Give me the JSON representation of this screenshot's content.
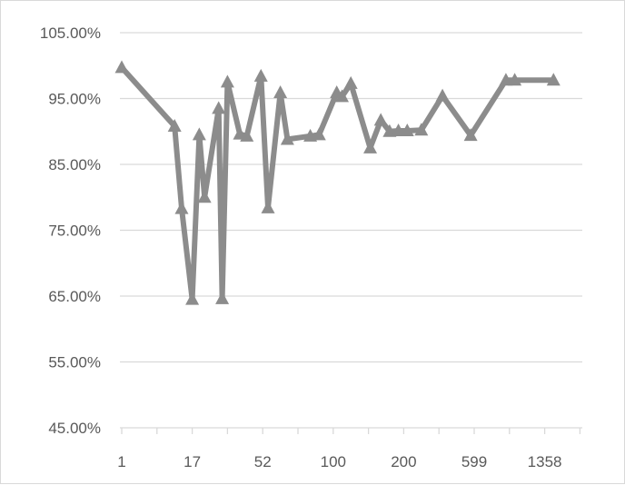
{
  "chart_data": {
    "type": "line",
    "title": "",
    "xlabel": "",
    "ylabel": "",
    "y_tick_labels": [
      "105.00%",
      "95.00%",
      "85.00%",
      "75.00%",
      "65.00%",
      "55.00%",
      "45.00%"
    ],
    "ylim": [
      45,
      105
    ],
    "x_tick_labels": [
      "1",
      "17",
      "52",
      "100",
      "200",
      "599",
      "1358"
    ],
    "x_tick_positions": [
      1,
      5,
      9,
      13,
      17,
      21,
      25
    ],
    "grid": true,
    "legend": "none",
    "colors": {
      "series": "#8c8c8c",
      "grid": "#d9d9d9",
      "text": "#595959"
    },
    "series": [
      {
        "marker": "triangle",
        "x": [
          1,
          4,
          4.4,
          5,
          5.4,
          5.7,
          6.5,
          6.7,
          7,
          7.7,
          8.1,
          8.9,
          9.3,
          10,
          10.4,
          11.7,
          12.2,
          13.2,
          13.5,
          14,
          15.1,
          15.7,
          16.2,
          16.7,
          17.2,
          18,
          19.2,
          20.8,
          22.8,
          23.3,
          25.5
        ],
        "y": [
          99.7,
          90.8,
          78.3,
          64.5,
          89.5,
          80.0,
          93.5,
          64.6,
          97.5,
          89.6,
          89.3,
          98.4,
          78.4,
          95.9,
          88.8,
          89.3,
          89.5,
          95.9,
          95.3,
          97.3,
          87.5,
          91.7,
          90.0,
          90.1,
          90.1,
          90.2,
          95.4,
          89.4,
          97.8,
          97.8,
          97.8
        ]
      }
    ]
  }
}
